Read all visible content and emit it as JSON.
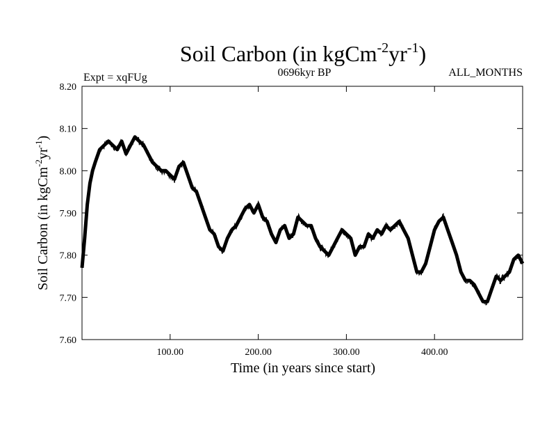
{
  "chart_data": {
    "type": "line",
    "title": {
      "main": "Soil Carbon (in kgCm",
      "sup1": "-2",
      "mid": "yr",
      "sup2": "-1",
      "end": ")"
    },
    "subtitle_left": "Expt = xqFUg",
    "subtitle_center": "0696kyr BP",
    "subtitle_right": "ALL_MONTHS",
    "xlabel": "Time (in years since start)",
    "ylabel": {
      "main": "Soil Carbon (in kgCm",
      "sup1": "-2",
      "mid": "yr",
      "sup2": "-1",
      "end": ")"
    },
    "xlim": [
      0,
      500
    ],
    "ylim": [
      7.6,
      8.2
    ],
    "x_ticks": [
      100,
      200,
      300,
      400
    ],
    "x_tick_labels": [
      "100.00",
      "200.00",
      "300.00",
      "400.00"
    ],
    "y_ticks": [
      7.6,
      7.7,
      7.8,
      7.9,
      8.0,
      8.1,
      8.2
    ],
    "y_tick_labels": [
      "7.60",
      "7.70",
      "7.80",
      "7.90",
      "8.00",
      "8.10",
      "8.20"
    ],
    "line_color": "#000000",
    "series": [
      {
        "name": "Soil Carbon",
        "x": [
          0,
          3,
          6,
          9,
          12,
          15,
          20,
          25,
          30,
          35,
          40,
          45,
          50,
          55,
          60,
          65,
          70,
          75,
          80,
          85,
          90,
          95,
          100,
          105,
          110,
          115,
          120,
          125,
          130,
          135,
          140,
          145,
          150,
          155,
          160,
          165,
          170,
          175,
          180,
          185,
          190,
          195,
          200,
          205,
          210,
          215,
          220,
          225,
          230,
          235,
          240,
          245,
          250,
          255,
          260,
          265,
          270,
          275,
          280,
          285,
          290,
          295,
          300,
          305,
          310,
          315,
          320,
          325,
          330,
          335,
          340,
          345,
          350,
          355,
          360,
          365,
          370,
          375,
          380,
          385,
          390,
          395,
          400,
          405,
          410,
          415,
          420,
          425,
          430,
          435,
          440,
          445,
          450,
          455,
          460,
          465,
          470,
          475,
          480,
          485,
          490,
          495,
          500
        ],
        "y": [
          7.77,
          7.84,
          7.92,
          7.97,
          8.0,
          8.02,
          8.05,
          8.06,
          8.07,
          8.06,
          8.05,
          8.07,
          8.04,
          8.06,
          8.08,
          8.07,
          8.06,
          8.04,
          8.02,
          8.01,
          8.0,
          8.0,
          7.99,
          7.98,
          8.01,
          8.02,
          7.99,
          7.96,
          7.95,
          7.92,
          7.89,
          7.86,
          7.85,
          7.82,
          7.81,
          7.84,
          7.86,
          7.87,
          7.89,
          7.91,
          7.92,
          7.9,
          7.92,
          7.89,
          7.88,
          7.85,
          7.83,
          7.86,
          7.87,
          7.84,
          7.85,
          7.89,
          7.88,
          7.87,
          7.87,
          7.84,
          7.82,
          7.81,
          7.8,
          7.82,
          7.84,
          7.86,
          7.85,
          7.84,
          7.8,
          7.82,
          7.82,
          7.85,
          7.84,
          7.86,
          7.85,
          7.87,
          7.86,
          7.87,
          7.88,
          7.86,
          7.84,
          7.8,
          7.76,
          7.76,
          7.78,
          7.82,
          7.86,
          7.88,
          7.89,
          7.86,
          7.83,
          7.8,
          7.76,
          7.74,
          7.74,
          7.73,
          7.71,
          7.69,
          7.69,
          7.72,
          7.75,
          7.74,
          7.75,
          7.76,
          7.79,
          7.8,
          7.78
        ]
      }
    ]
  }
}
